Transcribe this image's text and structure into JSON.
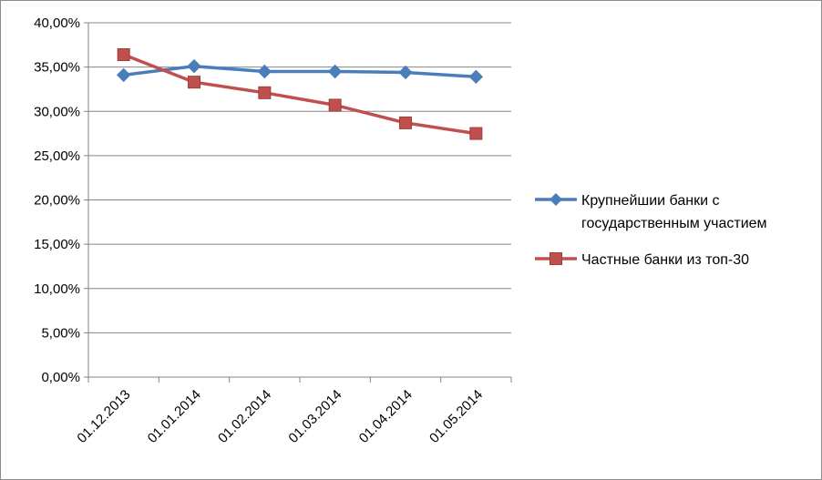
{
  "chart_data": {
    "type": "line",
    "categories": [
      "01.12.2013",
      "01.01.2014",
      "01.02.2014",
      "01.03.2014",
      "01.04.2014",
      "01.05.2014"
    ],
    "ylim": [
      0,
      0.4
    ],
    "ytick_step": 0.05,
    "ytick_labels": [
      "0,00%",
      "5,00%",
      "10,00%",
      "15,00%",
      "20,00%",
      "25,00%",
      "30,00%",
      "35,00%",
      "40,00%"
    ],
    "grid": true,
    "legend_position": "right",
    "series": [
      {
        "name_lines": [
          "Крупнейшии банки с",
          "государственным участием"
        ],
        "values": [
          0.341,
          0.351,
          0.345,
          0.345,
          0.344,
          0.339
        ],
        "color": "#4a7ebb",
        "marker": "diamond"
      },
      {
        "name_lines": [
          "Частные банки из топ-30"
        ],
        "values": [
          0.364,
          0.333,
          0.321,
          0.307,
          0.287,
          0.275
        ],
        "color": "#c0504d",
        "marker": "square"
      }
    ]
  }
}
